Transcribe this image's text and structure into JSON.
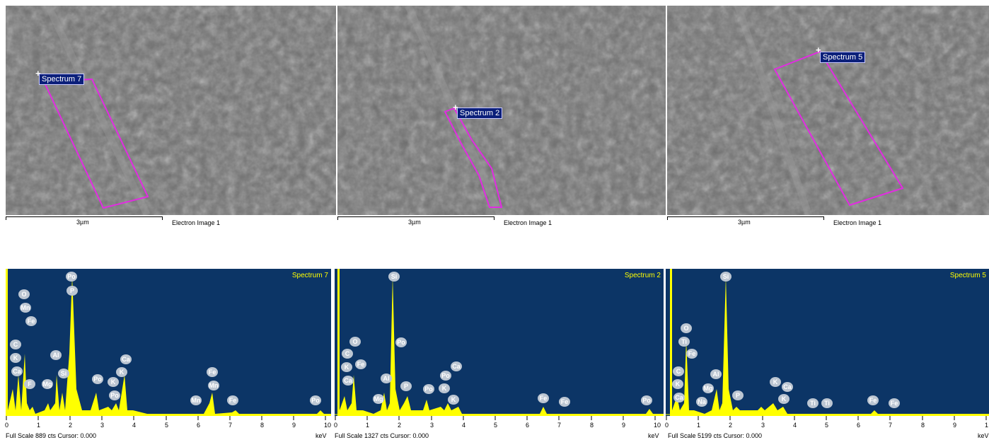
{
  "panels": [
    {
      "id": "p7",
      "roi_label": "Spectrum 7",
      "scale_label": "3µm",
      "image_label": "Electron Image 1",
      "spectrum_title": "Spectrum 7",
      "footer": "Full Scale 889 cts Cursor: 0.000",
      "kev": "keV",
      "elements": [
        "Po",
        "P",
        "O",
        "Mn",
        "Fe",
        "C",
        "K",
        "Ca",
        "F",
        "Mg",
        "Al",
        "Si",
        "Po",
        "K",
        "Po",
        "Ca",
        "K",
        "Fe",
        "Mn",
        "Mn",
        "Fe",
        "Po"
      ],
      "ticks": [
        "0",
        "1",
        "2",
        "3",
        "4",
        "5",
        "6",
        "7",
        "8",
        "9",
        "10"
      ]
    },
    {
      "id": "p2",
      "roi_label": "Spectrum 2",
      "scale_label": "3µm",
      "image_label": "Electron Image 1",
      "spectrum_title": "Spectrum 2",
      "footer": "Full Scale 1327 cts Cursor: 0.000",
      "kev": "keV",
      "elements": [
        "Si",
        "Po",
        "O",
        "C",
        "Fe",
        "K",
        "Ca",
        "Al",
        "Mg",
        "P",
        "Po",
        "Po",
        "Ca",
        "K",
        "K",
        "Fe",
        "Fe",
        "Po"
      ],
      "ticks": [
        "0",
        "1",
        "2",
        "3",
        "4",
        "5",
        "6",
        "7",
        "8",
        "9",
        "10"
      ]
    },
    {
      "id": "p5",
      "roi_label": "Spectrum 5",
      "scale_label": "3µm",
      "image_label": "Electron Image 1",
      "spectrum_title": "Spectrum 5",
      "footer": "Full Scale 5199 cts Cursor: 0.000",
      "kev": "keV",
      "elements": [
        "Si",
        "O",
        "Ti",
        "Fe",
        "C",
        "Al",
        "K",
        "Mg",
        "Ca",
        "Na",
        "P",
        "K",
        "Ca",
        "K",
        "Ti",
        "Ti",
        "Fe",
        "Fe"
      ],
      "ticks": [
        "0",
        "1",
        "2",
        "3",
        "4",
        "5",
        "6",
        "7",
        "8",
        "9",
        "1"
      ]
    }
  ],
  "colors": {
    "roi": "#e22be2",
    "spectrum_bg": "#0c3566",
    "peak": "#ffff00",
    "label_bg": "#0b1f7a"
  }
}
